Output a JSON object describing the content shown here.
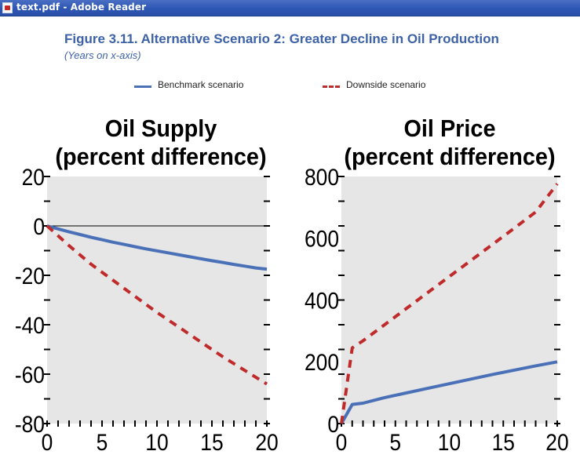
{
  "window": {
    "title": "text.pdf - Adobe Reader",
    "icon": "adobe-reader-pdf-icon"
  },
  "figure": {
    "title": "Figure 3.11.  Alternative Scenario 2: Greater Decline in Oil Production",
    "subtitle": "(Years on x-axis)"
  },
  "legend": {
    "benchmark": "Benchmark scenario",
    "downside": "Downside scenario"
  },
  "colors": {
    "benchmark": "#4a70b8",
    "downside": "#bf2b2b",
    "plot_background": "#e6e6e6",
    "title": "#3d62a8"
  },
  "chart_data": [
    {
      "type": "line",
      "title_line1": "Oil Supply",
      "title_line2": "(percent difference)",
      "xlim": [
        0,
        20
      ],
      "ylim": [
        -80,
        20
      ],
      "xticks": [
        0,
        5,
        10,
        15,
        20
      ],
      "yticks": [
        20,
        0,
        -20,
        -40,
        -60,
        -80
      ],
      "zero_line": true,
      "series": [
        {
          "name": "Benchmark scenario",
          "style": "solid",
          "x": [
            0,
            1,
            2,
            3,
            4,
            5,
            6,
            7,
            8,
            9,
            10,
            11,
            12,
            13,
            14,
            15,
            16,
            17,
            18,
            19,
            20
          ],
          "y": [
            0,
            -1.2,
            -2.4,
            -3.5,
            -4.6,
            -5.6,
            -6.6,
            -7.5,
            -8.4,
            -9.3,
            -10.1,
            -10.9,
            -11.7,
            -12.5,
            -13.3,
            -14.1,
            -14.8,
            -15.6,
            -16.3,
            -17.0,
            -17.5
          ]
        },
        {
          "name": "Downside scenario",
          "style": "dashed",
          "x": [
            0,
            2,
            4,
            6,
            8,
            10,
            12,
            14,
            16,
            18,
            20
          ],
          "y": [
            0,
            -8,
            -15.5,
            -22,
            -28.5,
            -35,
            -41,
            -47,
            -53,
            -58.5,
            -64
          ]
        }
      ]
    },
    {
      "type": "line",
      "title_line1": "Oil Price",
      "title_line2": "(percent difference)",
      "xlim": [
        0,
        20
      ],
      "ylim": [
        0,
        800
      ],
      "xticks": [
        0,
        5,
        10,
        15,
        20
      ],
      "yticks": [
        800,
        600,
        400,
        200,
        0
      ],
      "zero_line": false,
      "series": [
        {
          "name": "Benchmark scenario",
          "style": "solid",
          "x": [
            0,
            1,
            2,
            4,
            6,
            8,
            10,
            12,
            14,
            16,
            18,
            20
          ],
          "y": [
            0,
            62,
            66,
            84,
            99,
            114,
            129,
            144,
            159,
            173,
            187,
            200
          ]
        },
        {
          "name": "Downside scenario",
          "style": "dashed",
          "x": [
            0,
            1,
            2,
            4,
            6,
            8,
            10,
            12,
            14,
            16,
            18,
            20
          ],
          "y": [
            0,
            245,
            268,
            320,
            372,
            424,
            476,
            528,
            580,
            632,
            685,
            776
          ]
        }
      ]
    }
  ]
}
